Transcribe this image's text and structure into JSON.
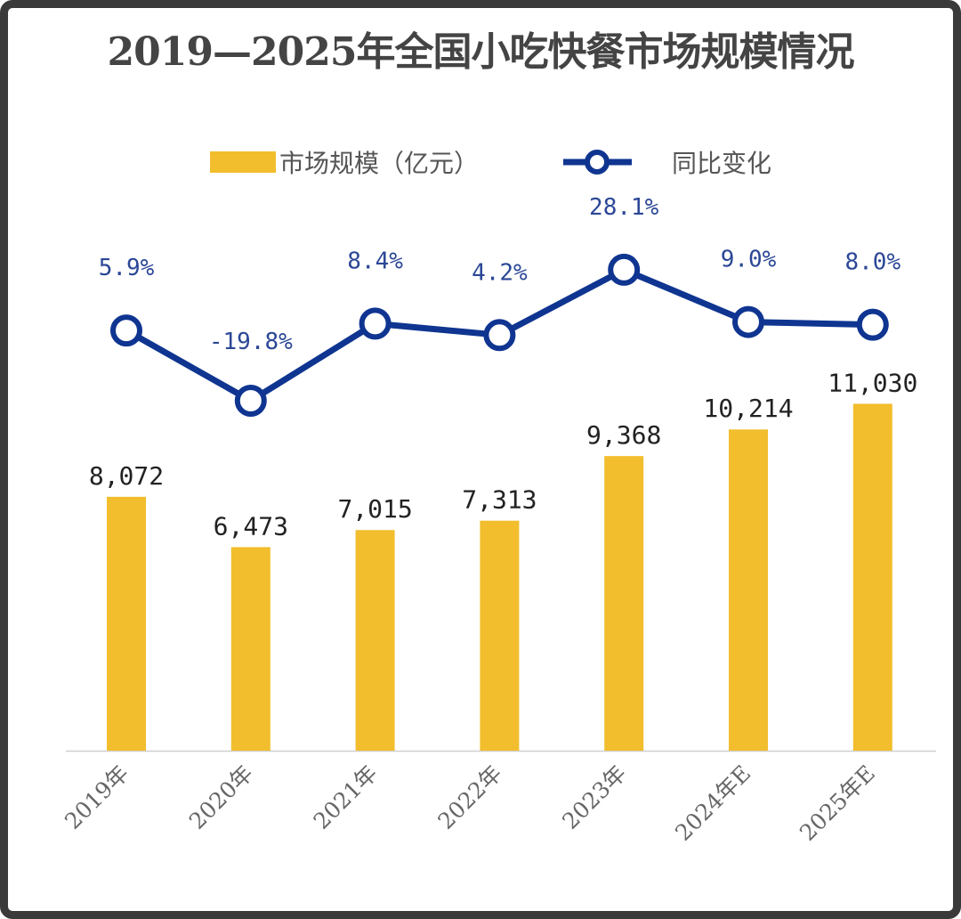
{
  "chart_data": {
    "type": "bar+line",
    "title": "2019—2025年全国小吃快餐市场规模情况",
    "categories": [
      "2019年",
      "2020年",
      "2021年",
      "2022年",
      "2023年",
      "2024年E",
      "2025年E"
    ],
    "series": [
      {
        "name": "市场规模（亿元）",
        "type": "bar",
        "values": [
          8072,
          6473,
          7015,
          7313,
          9368,
          10214,
          11030
        ],
        "labels": [
          "8,072",
          "6,473",
          "7,015",
          "7,313",
          "9,368",
          "10,214",
          "11,030"
        ],
        "color": "#F2BE2E"
      },
      {
        "name": "同比变化",
        "type": "line",
        "values": [
          5.9,
          -19.8,
          8.4,
          4.2,
          28.1,
          9.0,
          8.0
        ],
        "labels": [
          "5.9%",
          "-19.8%",
          "8.4%",
          "4.2%",
          "28.1%",
          "9.0%",
          "8.0%"
        ],
        "color": "#0F3591"
      }
    ],
    "legend_position": "top",
    "grid": false,
    "ylim": [
      0,
      12000
    ]
  }
}
